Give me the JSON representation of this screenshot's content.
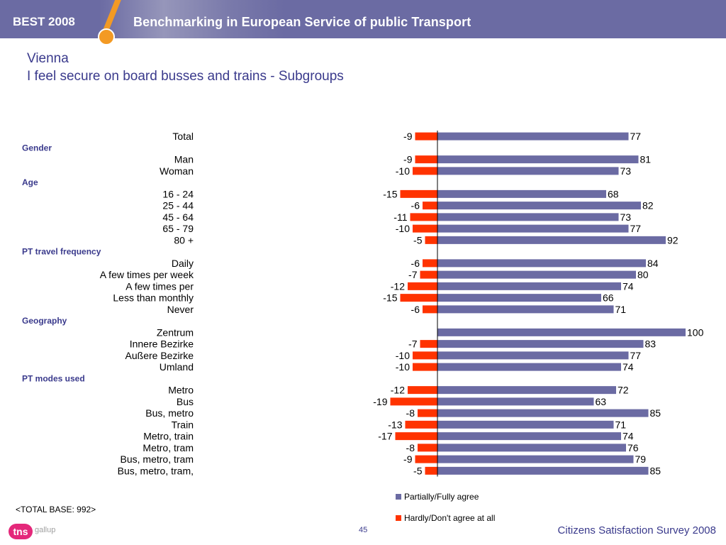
{
  "header": {
    "brand": "BEST 2008",
    "title": "Benchmarking in European Service of public Transport"
  },
  "page": {
    "title": "Vienna",
    "subtitle": "I feel secure on board busses and trains - Subgroups"
  },
  "colors": {
    "agree": "#6b6ba3",
    "disagree": "#ff3300",
    "header": "#6b6ba3",
    "title": "#3a3a8c"
  },
  "chart_data": {
    "type": "bar",
    "orientation": "horizontal-diverging",
    "xlim": [
      -25,
      100
    ],
    "grid": false,
    "legend_position": "bottom-center",
    "series": [
      {
        "name": "Partially/Fully agree",
        "color": "#6b6ba3"
      },
      {
        "name": "Hardly/Don't agree at all",
        "color": "#ff3300"
      }
    ],
    "rows": [
      {
        "kind": "bar",
        "label": "Total",
        "disagree": -9,
        "agree": 77
      },
      {
        "kind": "group",
        "label": "Gender"
      },
      {
        "kind": "bar",
        "label": "Man",
        "disagree": -9,
        "agree": 81
      },
      {
        "kind": "bar",
        "label": "Woman",
        "disagree": -10,
        "agree": 73
      },
      {
        "kind": "group",
        "label": "Age"
      },
      {
        "kind": "bar",
        "label": "16 - 24",
        "disagree": -15,
        "agree": 68
      },
      {
        "kind": "bar",
        "label": "25 - 44",
        "disagree": -6,
        "agree": 82
      },
      {
        "kind": "bar",
        "label": "45 - 64",
        "disagree": -11,
        "agree": 73
      },
      {
        "kind": "bar",
        "label": "65 - 79",
        "disagree": -10,
        "agree": 77
      },
      {
        "kind": "bar",
        "label": "80 +",
        "disagree": -5,
        "agree": 92
      },
      {
        "kind": "group",
        "label": "PT travel frequency"
      },
      {
        "kind": "bar",
        "label": "Daily",
        "disagree": -6,
        "agree": 84
      },
      {
        "kind": "bar",
        "label": "A few times per week",
        "disagree": -7,
        "agree": 80
      },
      {
        "kind": "bar",
        "label": "A few times per",
        "disagree": -12,
        "agree": 74
      },
      {
        "kind": "bar",
        "label": "Less than monthly",
        "disagree": -15,
        "agree": 66
      },
      {
        "kind": "bar",
        "label": "Never",
        "disagree": -6,
        "agree": 71
      },
      {
        "kind": "group",
        "label": "Geography"
      },
      {
        "kind": "bar",
        "label": "Zentrum",
        "disagree": null,
        "agree": 100
      },
      {
        "kind": "bar",
        "label": "Innere Bezirke",
        "disagree": -7,
        "agree": 83
      },
      {
        "kind": "bar",
        "label": "Außere Bezirke",
        "disagree": -10,
        "agree": 77
      },
      {
        "kind": "bar",
        "label": "Umland",
        "disagree": -10,
        "agree": 74
      },
      {
        "kind": "group",
        "label": "PT modes used"
      },
      {
        "kind": "bar",
        "label": "Metro",
        "disagree": -12,
        "agree": 72
      },
      {
        "kind": "bar",
        "label": "Bus",
        "disagree": -19,
        "agree": 63
      },
      {
        "kind": "bar",
        "label": "Bus, metro",
        "disagree": -8,
        "agree": 85
      },
      {
        "kind": "bar",
        "label": "Train",
        "disagree": -13,
        "agree": 71
      },
      {
        "kind": "bar",
        "label": "Metro, train",
        "disagree": -17,
        "agree": 74
      },
      {
        "kind": "bar",
        "label": "Metro, tram",
        "disagree": -8,
        "agree": 76
      },
      {
        "kind": "bar",
        "label": "Bus, metro, tram",
        "disagree": -9,
        "agree": 79
      },
      {
        "kind": "bar",
        "label": "Bus, metro, tram,",
        "disagree": -5,
        "agree": 85
      }
    ]
  },
  "footer": {
    "base_note": "<TOTAL BASE: 992>",
    "logo_text": "tns",
    "logo_sub": "gallup",
    "page_number": "45",
    "survey": "Citizens Satisfaction Survey 2008"
  }
}
